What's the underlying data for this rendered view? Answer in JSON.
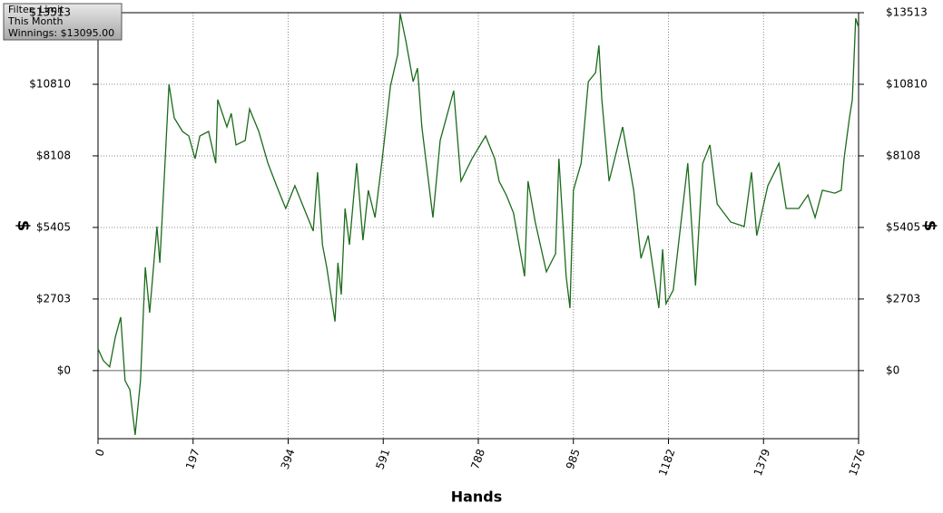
{
  "chart_data": {
    "type": "line",
    "x_label": "Hands",
    "y_label": "$",
    "annotations": [
      "Filter: Limit",
      "This Month",
      "Winnings: $13095.00"
    ],
    "x": [
      0,
      11,
      24,
      36,
      47,
      56,
      66,
      77,
      88,
      98,
      107,
      122,
      128,
      137,
      147,
      158,
      175,
      188,
      201,
      211,
      229,
      244,
      248,
      267,
      276,
      286,
      305,
      314,
      333,
      352,
      370,
      389,
      408,
      427,
      446,
      455,
      465,
      474,
      491,
      497,
      504,
      512,
      521,
      536,
      549,
      560,
      574,
      589,
      606,
      621,
      626,
      638,
      653,
      662,
      671,
      694,
      709,
      737,
      752,
      775,
      803,
      822,
      831,
      846,
      861,
      869,
      884,
      891,
      906,
      929,
      948,
      955,
      970,
      978,
      985,
      1001,
      1016,
      1031,
      1038,
      1044,
      1059,
      1087,
      1110,
      1125,
      1140,
      1162,
      1170,
      1177,
      1192,
      1207,
      1222,
      1238,
      1253,
      1268,
      1283,
      1311,
      1339,
      1354,
      1365,
      1388,
      1411,
      1426,
      1452,
      1471,
      1486,
      1501,
      1527,
      1540,
      1546,
      1557,
      1563,
      1570,
      1576
    ],
    "series": [
      {
        "name": "Winnings",
        "color": "#1b6b1b",
        "values": [
          820,
          380,
          140,
          1270,
          2020,
          -380,
          -720,
          -2430,
          -380,
          3900,
          2190,
          5440,
          4070,
          7150,
          10810,
          9540,
          9030,
          8860,
          8000,
          8860,
          9030,
          7830,
          10230,
          9200,
          9710,
          8520,
          8690,
          9880,
          9030,
          7830,
          6980,
          6120,
          6980,
          6120,
          5270,
          7490,
          4750,
          3900,
          1850,
          4070,
          2870,
          6120,
          4750,
          7830,
          4920,
          6810,
          5780,
          8000,
          10740,
          11940,
          13480,
          12450,
          10910,
          11420,
          9200,
          5780,
          8690,
          10570,
          7150,
          8000,
          8860,
          8000,
          7150,
          6630,
          5950,
          5100,
          3560,
          7150,
          5610,
          3730,
          4410,
          8000,
          3560,
          2360,
          6810,
          7830,
          10910,
          11250,
          12280,
          10230,
          7150,
          9200,
          6810,
          4240,
          5100,
          2360,
          4580,
          2530,
          3040,
          5440,
          7830,
          3210,
          7830,
          8520,
          6290,
          5610,
          5440,
          7490,
          5100,
          6980,
          7830,
          6120,
          6120,
          6630,
          5780,
          6810,
          6700,
          6810,
          8000,
          9540,
          10230,
          13300,
          12960
        ]
      }
    ],
    "xlim": [
      0,
      1576
    ],
    "xticks": [
      0,
      197,
      394,
      591,
      788,
      985,
      1182,
      1379,
      1576
    ],
    "ylim": [
      -2570,
      13513
    ],
    "yticks": [
      {
        "value": 0,
        "label": "$0"
      },
      {
        "value": 2703,
        "label": "$2703"
      },
      {
        "value": 5405,
        "label": "$5405"
      },
      {
        "value": 8108,
        "label": "$8108"
      },
      {
        "value": 10810,
        "label": "$10810"
      },
      {
        "value": 13513,
        "label": "$13513"
      }
    ],
    "grid": true
  }
}
